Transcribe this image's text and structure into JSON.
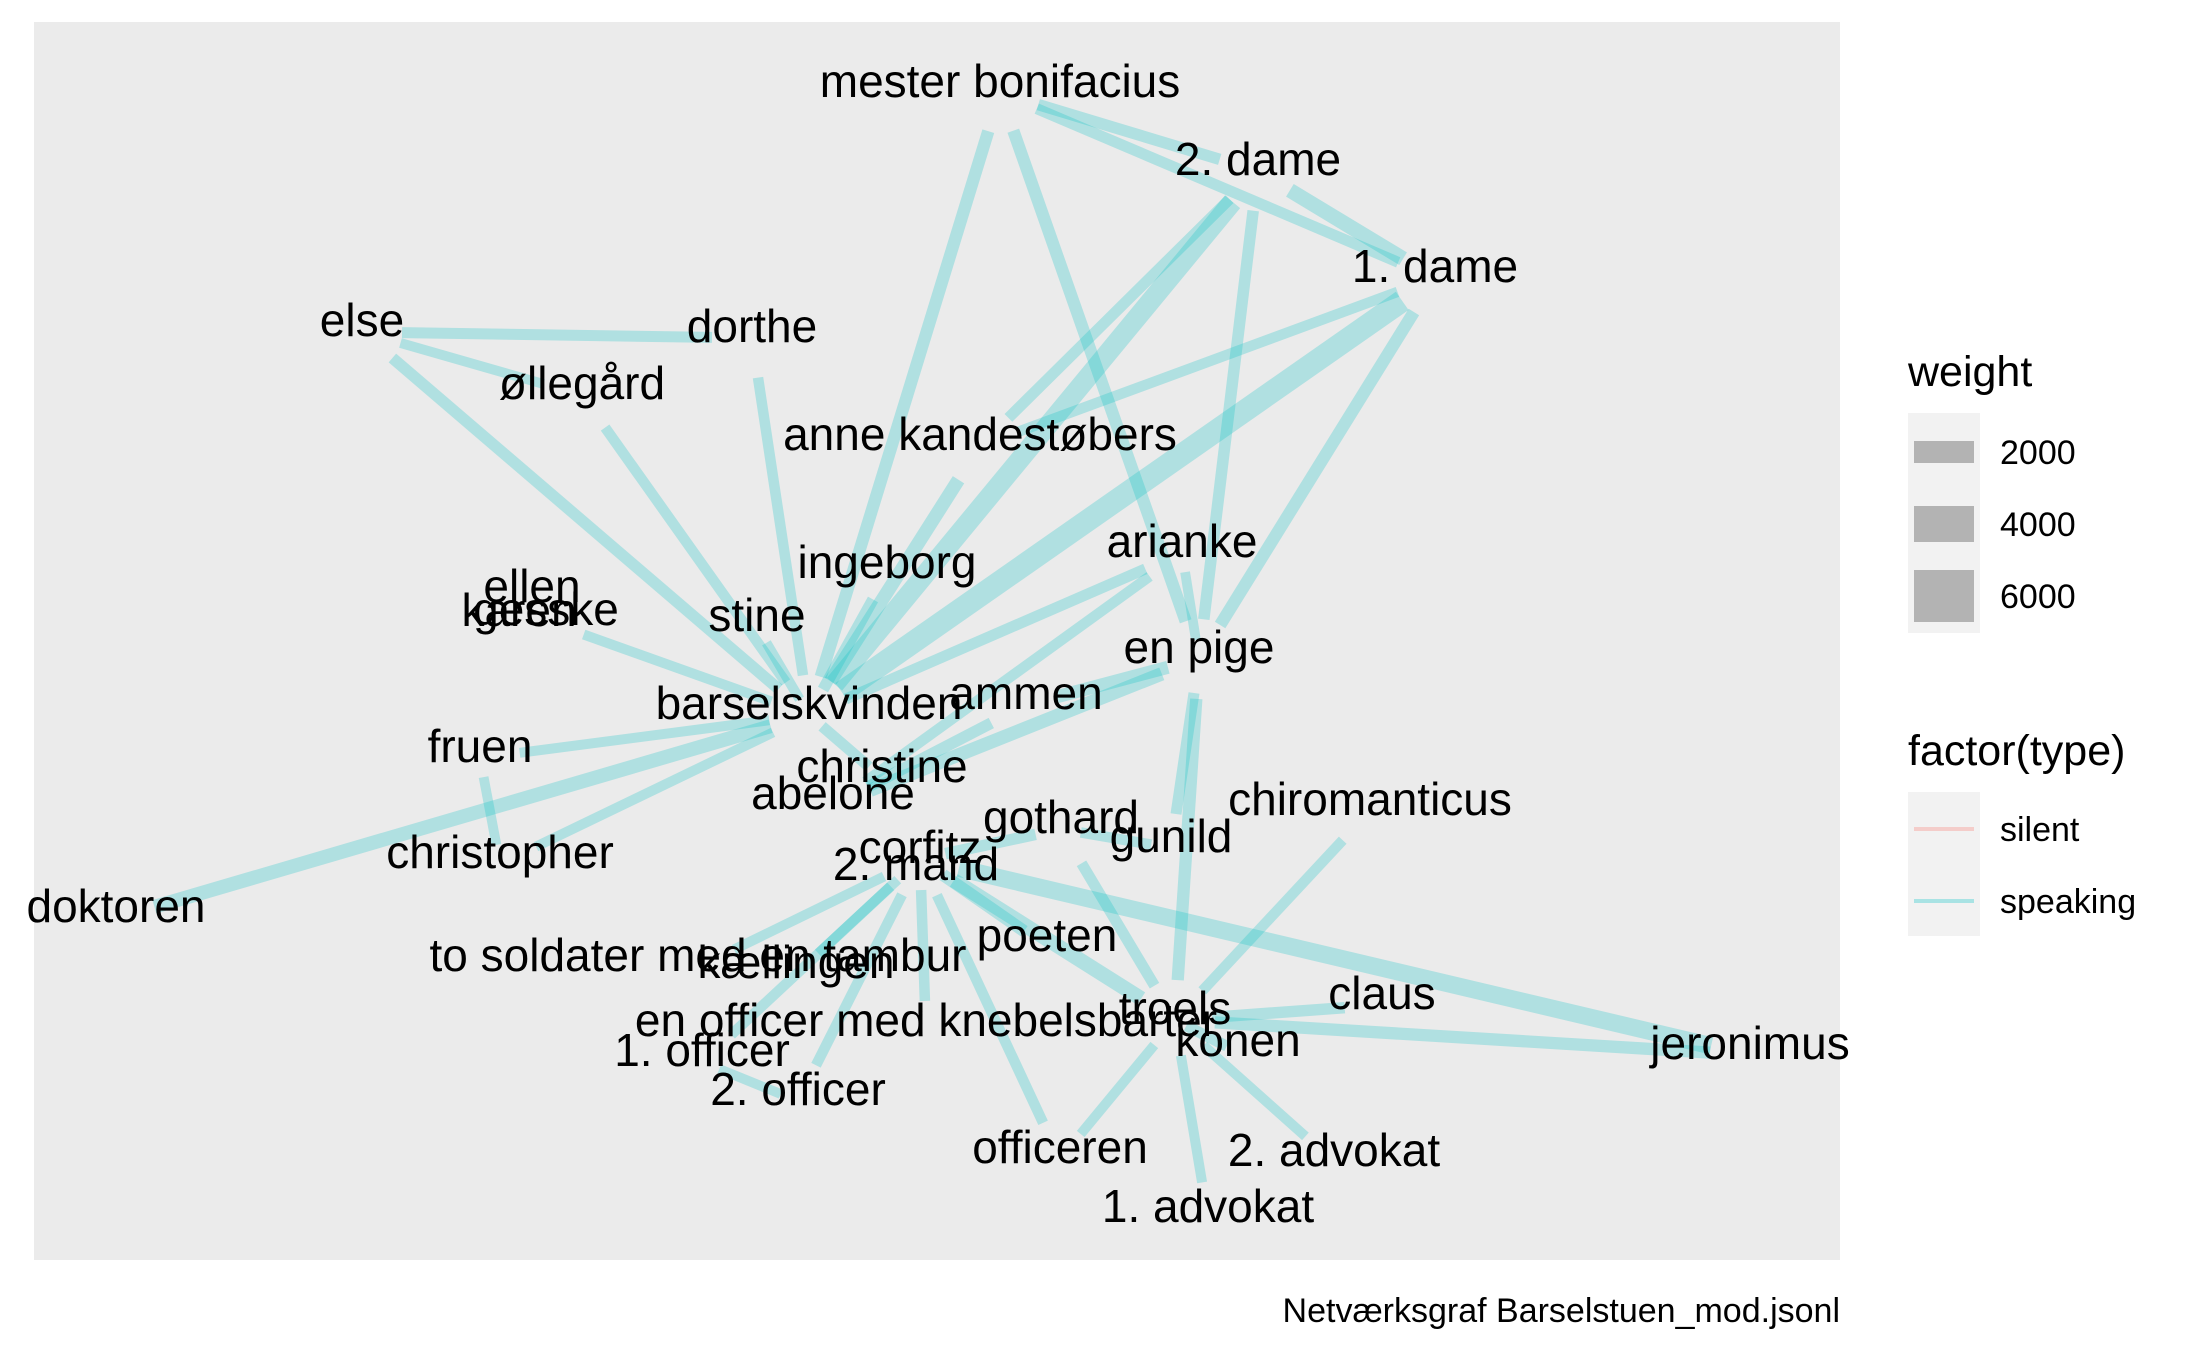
{
  "caption": "Netværksgraf Barselstuen_mod.jsonl",
  "colors": {
    "panel": "#ebebeb",
    "speaking": "#00BFC4",
    "silent": "#F8766D",
    "legend_key_bg": "#f2f2f2",
    "weight_key": "#b3b3b3"
  },
  "legend": {
    "weight_title": "weight",
    "weight_items": [
      {
        "label": "2000",
        "weight": 2000
      },
      {
        "label": "4000",
        "weight": 4000
      },
      {
        "label": "6000",
        "weight": 6000
      }
    ],
    "type_title": "factor(type)",
    "type_items": [
      {
        "label": "silent",
        "type": "silent"
      },
      {
        "label": "speaking",
        "type": "speaking"
      }
    ]
  },
  "nodes": [
    {
      "id": "mester_bonifacius",
      "label": "mester bonifacius"
    },
    {
      "id": "dame2",
      "label": "2. dame"
    },
    {
      "id": "dame1",
      "label": "1. dame"
    },
    {
      "id": "else",
      "label": "else"
    },
    {
      "id": "dorthe",
      "label": "dorthe"
    },
    {
      "id": "ollegard",
      "label": "øllegård"
    },
    {
      "id": "anne",
      "label": "anne kandestøbers"
    },
    {
      "id": "ingeborg",
      "label": "ingeborg"
    },
    {
      "id": "arianke",
      "label": "arianke"
    },
    {
      "id": "ellen",
      "label": "ellen"
    },
    {
      "id": "karen",
      "label": "karen"
    },
    {
      "id": "gesske",
      "label": "gesske"
    },
    {
      "id": "stine",
      "label": "stine"
    },
    {
      "id": "en_pige",
      "label": "en pige"
    },
    {
      "id": "ammen",
      "label": "ammen"
    },
    {
      "id": "barselskvinden",
      "label": "barselskvinden"
    },
    {
      "id": "fruen",
      "label": "fruen"
    },
    {
      "id": "christine",
      "label": "christine"
    },
    {
      "id": "abelone",
      "label": "abelone"
    },
    {
      "id": "chiromanticus",
      "label": "chiromanticus"
    },
    {
      "id": "gothard",
      "label": "gothard"
    },
    {
      "id": "gunild",
      "label": "gunild"
    },
    {
      "id": "corfitz",
      "label": "corfitz"
    },
    {
      "id": "mand2",
      "label": "2. mand"
    },
    {
      "id": "christopher",
      "label": "christopher"
    },
    {
      "id": "doktoren",
      "label": "doktoren"
    },
    {
      "id": "poeten",
      "label": "poeten"
    },
    {
      "id": "to_soldater",
      "label": "to soldater med en tambur"
    },
    {
      "id": "kaellingen",
      "label": "kællingen"
    },
    {
      "id": "claus",
      "label": "claus"
    },
    {
      "id": "troels",
      "label": "troels"
    },
    {
      "id": "en_officer",
      "label": "en officer med knebelsbarter"
    },
    {
      "id": "konen",
      "label": "konen"
    },
    {
      "id": "jeronimus",
      "label": "jeronimus"
    },
    {
      "id": "officer1",
      "label": "1. officer"
    },
    {
      "id": "officer2",
      "label": "2. officer"
    },
    {
      "id": "officeren",
      "label": "officeren"
    },
    {
      "id": "advokat2",
      "label": "2. advokat"
    },
    {
      "id": "advokat1",
      "label": "1. advokat"
    }
  ],
  "edges": [
    {
      "source": "mester_bonifacius",
      "target": "barselskvinden",
      "type": "speaking",
      "weight": 2500
    },
    {
      "source": "mester_bonifacius",
      "target": "en_pige",
      "type": "speaking",
      "weight": 2500
    },
    {
      "source": "mester_bonifacius",
      "target": "dame2",
      "type": "speaking",
      "weight": 2200
    },
    {
      "source": "mester_bonifacius",
      "target": "dame1",
      "type": "speaking",
      "weight": 2000
    },
    {
      "source": "dame2",
      "target": "dame1",
      "type": "speaking",
      "weight": 3500
    },
    {
      "source": "dame2",
      "target": "barselskvinden",
      "type": "speaking",
      "weight": 5500
    },
    {
      "source": "dame2",
      "target": "en_pige",
      "type": "speaking",
      "weight": 2200
    },
    {
      "source": "dame2",
      "target": "anne",
      "type": "speaking",
      "weight": 2000
    },
    {
      "source": "dame1",
      "target": "barselskvinden",
      "type": "speaking",
      "weight": 6500
    },
    {
      "source": "dame1",
      "target": "en_pige",
      "type": "speaking",
      "weight": 2500
    },
    {
      "source": "dame1",
      "target": "anne",
      "type": "speaking",
      "weight": 1800
    },
    {
      "source": "else",
      "target": "dorthe",
      "type": "speaking",
      "weight": 2000
    },
    {
      "source": "else",
      "target": "ollegard",
      "type": "speaking",
      "weight": 1500
    },
    {
      "source": "else",
      "target": "barselskvinden",
      "type": "speaking",
      "weight": 2200
    },
    {
      "source": "dorthe",
      "target": "barselskvinden",
      "type": "speaking",
      "weight": 1800
    },
    {
      "source": "ollegard",
      "target": "barselskvinden",
      "type": "speaking",
      "weight": 1800
    },
    {
      "source": "anne",
      "target": "barselskvinden",
      "type": "speaking",
      "weight": 3000
    },
    {
      "source": "ingeborg",
      "target": "barselskvinden",
      "type": "speaking",
      "weight": 2200
    },
    {
      "source": "arianke",
      "target": "barselskvinden",
      "type": "speaking",
      "weight": 2000
    },
    {
      "source": "gesske",
      "target": "barselskvinden",
      "type": "speaking",
      "weight": 1600
    },
    {
      "source": "stine",
      "target": "barselskvinden",
      "type": "speaking",
      "weight": 1600
    },
    {
      "source": "fruen",
      "target": "barselskvinden",
      "type": "speaking",
      "weight": 1600
    },
    {
      "source": "doktoren",
      "target": "barselskvinden",
      "type": "speaking",
      "weight": 3200
    },
    {
      "source": "christopher",
      "target": "barselskvinden",
      "type": "speaking",
      "weight": 1600
    },
    {
      "source": "christopher",
      "target": "fruen",
      "type": "speaking",
      "weight": 1500
    },
    {
      "source": "barselskvinden",
      "target": "christine",
      "type": "speaking",
      "weight": 2000
    },
    {
      "source": "arianke",
      "target": "en_pige",
      "type": "speaking",
      "weight": 1500
    },
    {
      "source": "arianke",
      "target": "abelone",
      "type": "speaking",
      "weight": 1800
    },
    {
      "source": "en_pige",
      "target": "ammen",
      "type": "speaking",
      "weight": 2800
    },
    {
      "source": "en_pige",
      "target": "abelone",
      "type": "speaking",
      "weight": 3000
    },
    {
      "source": "en_pige",
      "target": "troels",
      "type": "speaking",
      "weight": 2500
    },
    {
      "source": "en_pige",
      "target": "gunild",
      "type": "speaking",
      "weight": 2000
    },
    {
      "source": "ammen",
      "target": "abelone",
      "type": "speaking",
      "weight": 2200
    },
    {
      "source": "corfitz",
      "target": "gothard",
      "type": "speaking",
      "weight": 2200
    },
    {
      "source": "corfitz",
      "target": "troels",
      "type": "speaking",
      "weight": 3500
    },
    {
      "source": "corfitz",
      "target": "jeronimus",
      "type": "speaking",
      "weight": 4500
    },
    {
      "source": "corfitz",
      "target": "poeten",
      "type": "speaking",
      "weight": 2500
    },
    {
      "source": "corfitz",
      "target": "to_soldater",
      "type": "speaking",
      "weight": 1600
    },
    {
      "source": "corfitz",
      "target": "kaellingen",
      "type": "speaking",
      "weight": 1600
    },
    {
      "source": "corfitz",
      "target": "officer1",
      "type": "speaking",
      "weight": 1800
    },
    {
      "source": "corfitz",
      "target": "officer2",
      "type": "speaking",
      "weight": 1800
    },
    {
      "source": "corfitz",
      "target": "en_officer",
      "type": "speaking",
      "weight": 1800
    },
    {
      "source": "corfitz",
      "target": "officeren",
      "type": "speaking",
      "weight": 1800
    },
    {
      "source": "gothard",
      "target": "gunild",
      "type": "speaking",
      "weight": 1800
    },
    {
      "source": "gothard",
      "target": "troels",
      "type": "speaking",
      "weight": 2000
    },
    {
      "source": "chiromanticus",
      "target": "troels",
      "type": "speaking",
      "weight": 1800
    },
    {
      "source": "troels",
      "target": "claus",
      "type": "speaking",
      "weight": 2200
    },
    {
      "source": "troels",
      "target": "jeronimus",
      "type": "speaking",
      "weight": 2500
    },
    {
      "source": "troels",
      "target": "konen",
      "type": "speaking",
      "weight": 2000
    },
    {
      "source": "troels",
      "target": "officeren",
      "type": "speaking",
      "weight": 1600
    },
    {
      "source": "troels",
      "target": "advokat1",
      "type": "speaking",
      "weight": 1600
    },
    {
      "source": "troels",
      "target": "advokat2",
      "type": "speaking",
      "weight": 1600
    },
    {
      "source": "officer1",
      "target": "officer2",
      "type": "speaking",
      "weight": 1500
    }
  ]
}
